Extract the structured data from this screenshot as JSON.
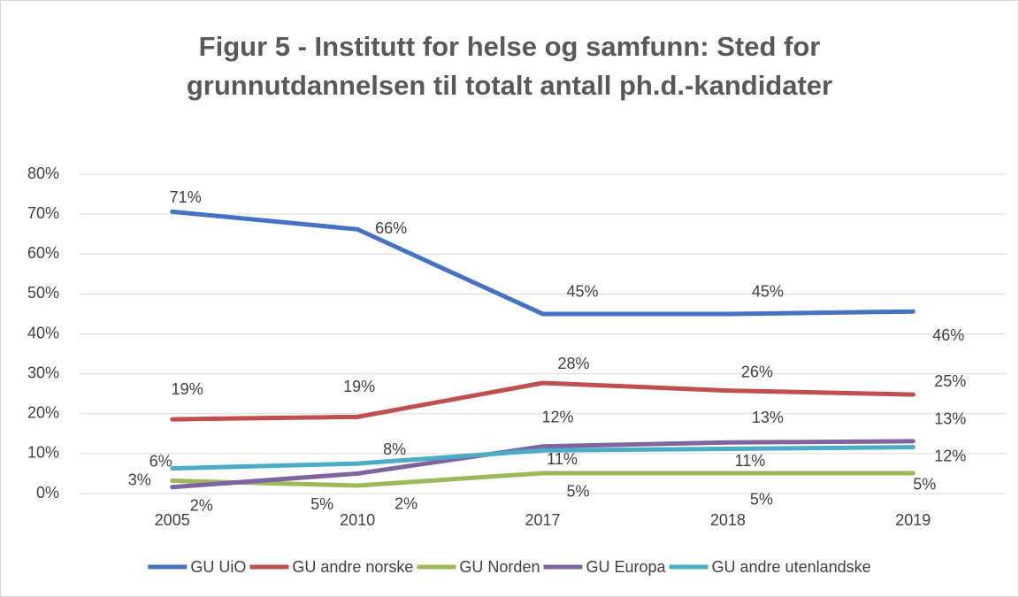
{
  "chart_data": {
    "type": "line",
    "title": "Figur 5 - Institutt for helse og samfunn: Sted for grunnutdannelsen til totalt antall ph.d.-kandidater",
    "categories": [
      "2005",
      "2010",
      "2017",
      "2018",
      "2019"
    ],
    "series": [
      {
        "name": "GU UiO",
        "color": "#4472c4",
        "values": [
          70.6,
          66.2,
          45,
          45,
          45.6
        ],
        "value_labels": [
          "71%",
          "66%",
          "45%",
          "45%",
          "46%"
        ]
      },
      {
        "name": "GU andre norske",
        "color": "#c0504d",
        "values": [
          18.6,
          19.2,
          27.7,
          25.8,
          24.8
        ],
        "value_labels": [
          "19%",
          "19%",
          "28%",
          "26%",
          "25%"
        ]
      },
      {
        "name": "GU Norden",
        "color": "#9bbb59",
        "values": [
          3.2,
          2.0,
          5.1,
          5.1,
          5.1
        ],
        "value_labels": [
          "3%",
          "2%",
          "5%",
          "5%",
          "5%"
        ]
      },
      {
        "name": "GU Europa",
        "color": "#8064a2",
        "values": [
          1.6,
          5.0,
          11.8,
          12.8,
          13.1
        ],
        "value_labels": [
          "2%",
          "5%",
          "12%",
          "13%",
          "13%"
        ]
      },
      {
        "name": "GU andre utenlandske",
        "color": "#4bacc6",
        "values": [
          6.3,
          7.5,
          10.8,
          11.2,
          11.6
        ],
        "value_labels": [
          "6%",
          "8%",
          "11%",
          "11%",
          "12%"
        ]
      }
    ],
    "ylim": [
      0,
      80
    ],
    "yticks": [
      {
        "value": 0,
        "label": "0%"
      },
      {
        "value": 10,
        "label": "10%"
      },
      {
        "value": 20,
        "label": "20%"
      },
      {
        "value": 30,
        "label": "30%"
      },
      {
        "value": 40,
        "label": "40%"
      },
      {
        "value": 50,
        "label": "50%"
      },
      {
        "value": 60,
        "label": "60%"
      },
      {
        "value": 70,
        "label": "70%"
      },
      {
        "value": 80,
        "label": "80%"
      }
    ],
    "grid": true,
    "legend": "bottom"
  }
}
